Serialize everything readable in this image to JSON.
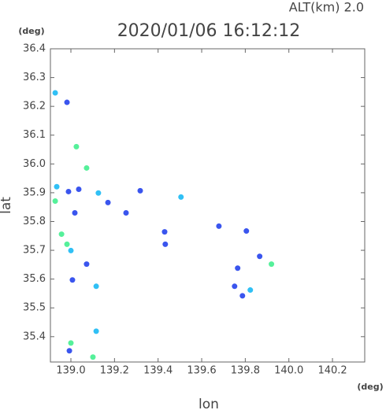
{
  "chart_data": {
    "type": "scatter",
    "title": "2020/01/06 16:12:12",
    "subtitle": "ALT(km) 2.0",
    "x_label": "lon",
    "y_label": "lat",
    "x_unit": "(deg)",
    "y_unit": "(deg)",
    "xlim": [
      138.906,
      140.348
    ],
    "ylim": [
      35.312,
      36.4
    ],
    "xticks": [
      {
        "value": 139,
        "label": "139.0"
      },
      139.2,
      139.4,
      139.6,
      139.8,
      {
        "value": 140,
        "label": "140.0"
      },
      140.2
    ],
    "yticks": [
      {
        "value": 35.4,
        "label": "35.4"
      },
      35.5,
      35.6,
      35.7,
      35.8,
      35.9,
      {
        "value": 36,
        "label": "36.0"
      },
      36.1,
      36.2,
      36.3,
      36.4
    ],
    "series": [
      {
        "color": "#3a55ee",
        "x": [
          138.982,
          138.989,
          139.036,
          139.018,
          139.072,
          139.007,
          139.318,
          139.43,
          139.679,
          139.805,
          139.765,
          139.866,
          139.787,
          139.751,
          138.993,
          139.253,
          139.17,
          139.433
        ],
        "values": [
          36.214,
          35.904,
          35.912,
          35.83,
          35.652,
          35.597,
          35.907,
          35.764,
          35.784,
          35.767,
          35.638,
          35.679,
          35.542,
          35.575,
          35.351,
          35.83,
          35.866,
          35.721
        ]
      },
      {
        "color": "#30c0f5",
        "x": [
          138.928,
          138.935,
          139.0,
          139.116,
          139.126,
          139.505,
          139.823,
          139.116
        ],
        "values": [
          36.247,
          35.921,
          35.699,
          35.575,
          35.899,
          35.885,
          35.562,
          35.419
        ]
      },
      {
        "color": "#55f09a",
        "x": [
          139.025,
          139.072,
          138.928,
          138.957,
          138.982,
          139.92,
          139.0,
          139.101
        ],
        "values": [
          36.06,
          35.986,
          35.871,
          35.756,
          35.721,
          35.652,
          35.378,
          35.329
        ]
      }
    ]
  }
}
